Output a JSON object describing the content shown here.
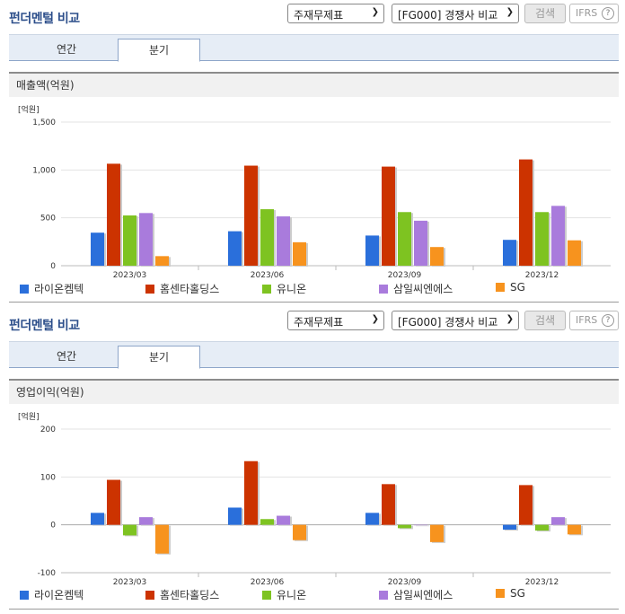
{
  "panels": [
    {
      "header": {
        "title": "펀더멘털 비교",
        "select1": "주재무제표",
        "select2": "[FG000] 경쟁사 비교",
        "search_label": "검색",
        "ifrs_label": "IFRS",
        "help": "?"
      },
      "tabs": [
        {
          "label": "연간",
          "active": false
        },
        {
          "label": "분기",
          "active": true
        }
      ],
      "chart_title": "매출액(억원)"
    },
    {
      "header": {
        "title": "펀더멘털 비교",
        "select1": "주재무제표",
        "select2": "[FG000] 경쟁사 비교",
        "search_label": "검색",
        "ifrs_label": "IFRS",
        "help": "?"
      },
      "tabs": [
        {
          "label": "연간",
          "active": false
        },
        {
          "label": "분기",
          "active": true
        }
      ],
      "chart_title": "영업이익(억원)"
    }
  ],
  "chart_data": [
    {
      "type": "bar",
      "unit_label": "[억원]",
      "categories": [
        "2023/03",
        "2023/06",
        "2023/09",
        "2023/12"
      ],
      "ylim": [
        0,
        1500
      ],
      "yticks": [
        0,
        500,
        1000,
        1500
      ],
      "ytick_labels": [
        "0",
        "500",
        "1,000",
        "1,500"
      ],
      "series": [
        {
          "name": "라이온켐텍",
          "color": "#2a6fdb",
          "values": [
            345,
            360,
            315,
            270
          ]
        },
        {
          "name": "홈센타홀딩스",
          "color": "#cc3300",
          "values": [
            1065,
            1045,
            1035,
            1110
          ]
        },
        {
          "name": "유니온",
          "color": "#7ec321",
          "values": [
            525,
            590,
            560,
            560
          ]
        },
        {
          "name": "삼일씨엔에스",
          "color": "#a97bdc",
          "values": [
            550,
            515,
            470,
            625
          ]
        },
        {
          "name": "SG",
          "color": "#f7931e",
          "values": [
            100,
            245,
            195,
            265
          ]
        }
      ]
    },
    {
      "type": "bar",
      "unit_label": "[억원]",
      "categories": [
        "2023/03",
        "2023/06",
        "2023/09",
        "2023/12"
      ],
      "ylim": [
        -100,
        200
      ],
      "yticks": [
        -100,
        0,
        100,
        200
      ],
      "ytick_labels": [
        "-100",
        "0",
        "100",
        "200"
      ],
      "series": [
        {
          "name": "라이온켐텍",
          "color": "#2a6fdb",
          "values": [
            25,
            36,
            25,
            -10
          ]
        },
        {
          "name": "홈센타홀딩스",
          "color": "#cc3300",
          "values": [
            94,
            133,
            85,
            83
          ]
        },
        {
          "name": "유니온",
          "color": "#7ec321",
          "values": [
            -22,
            12,
            -7,
            -12
          ]
        },
        {
          "name": "삼일씨엔에스",
          "color": "#a97bdc",
          "values": [
            16,
            19,
            0,
            16
          ]
        },
        {
          "name": "SG",
          "color": "#f7931e",
          "values": [
            -60,
            -32,
            -36,
            -20
          ]
        }
      ]
    }
  ]
}
